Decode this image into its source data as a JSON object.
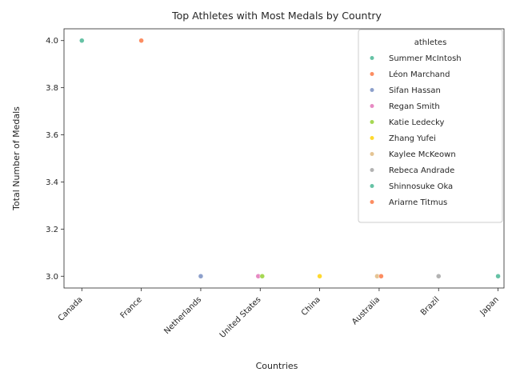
{
  "chart_data": {
    "type": "scatter",
    "title": "Top Athletes with Most Medals by Country",
    "xlabel": "Countries",
    "ylabel": "Total Number of Medals",
    "categories": [
      "Canada",
      "France",
      "Netherlands",
      "United States",
      "China",
      "Australia",
      "Brazil",
      "Japan"
    ],
    "ylim": [
      2.95,
      4.05
    ],
    "yticks": [
      "3.0",
      "3.2",
      "3.4",
      "3.6",
      "3.8",
      "4.0"
    ],
    "legend_title": "athletes",
    "legend_position": "top-right",
    "grid": false,
    "series": [
      {
        "name": "Summer McIntosh",
        "color": "#66c2a5",
        "category": "Canada",
        "value": 4
      },
      {
        "name": "Léon Marchand",
        "color": "#fc8d62",
        "category": "France",
        "value": 4
      },
      {
        "name": "Sifan Hassan",
        "color": "#8da0cb",
        "category": "Netherlands",
        "value": 3
      },
      {
        "name": "Regan Smith",
        "color": "#e78ac3",
        "category": "United States",
        "value": 3
      },
      {
        "name": "Katie Ledecky",
        "color": "#a6d854",
        "category": "United States",
        "value": 3
      },
      {
        "name": "Zhang Yufei",
        "color": "#ffd92f",
        "category": "China",
        "value": 3
      },
      {
        "name": "Kaylee McKeown",
        "color": "#e5c494",
        "category": "Australia",
        "value": 3
      },
      {
        "name": "Rebeca Andrade",
        "color": "#b3b3b3",
        "category": "Brazil",
        "value": 3
      },
      {
        "name": "Shinnosuke Oka",
        "color": "#66c2a5",
        "category": "Japan",
        "value": 3
      },
      {
        "name": "Ariarne Titmus",
        "color": "#fc8d62",
        "category": "Australia",
        "value": 3
      }
    ]
  }
}
